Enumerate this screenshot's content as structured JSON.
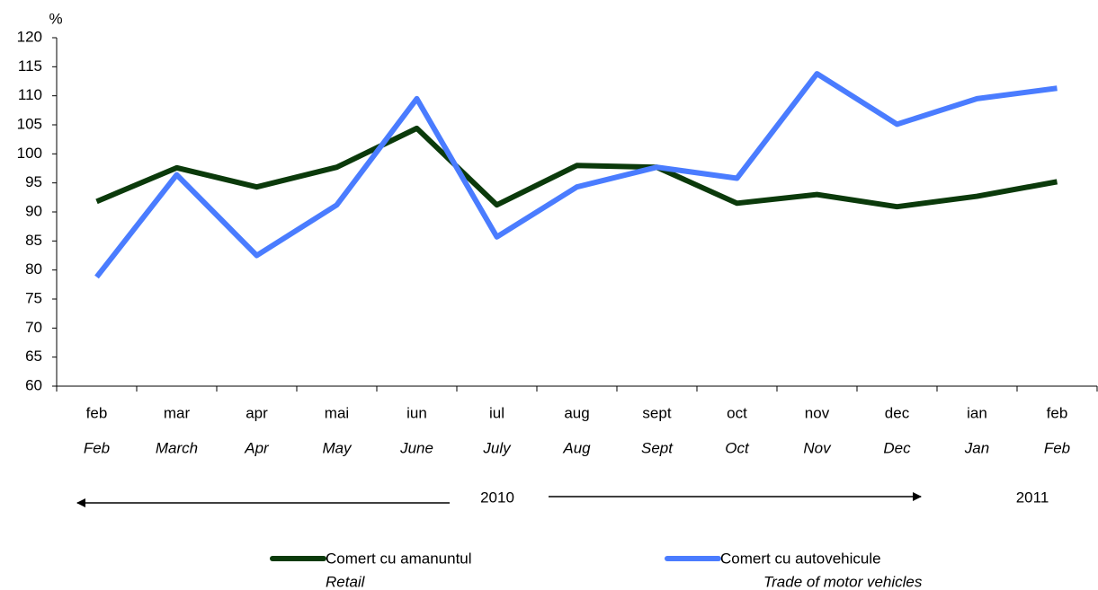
{
  "chart_data": {
    "type": "line",
    "y_axis_label": "%",
    "categories": [
      "feb",
      "mar",
      "apr",
      "mai",
      "iun",
      "iul",
      "aug",
      "sept",
      "oct",
      "nov",
      "dec",
      "ian",
      "feb"
    ],
    "categories_en": [
      "Feb",
      "March",
      "Apr",
      "May",
      "June",
      "July",
      "Aug",
      "Sept",
      "Oct",
      "Nov",
      "Dec",
      "Jan",
      "Feb"
    ],
    "annotations": [
      "2010",
      "2011"
    ],
    "series": [
      {
        "name": "Comert cu amanuntul",
        "name_en": "Retail",
        "color": "#0b3a0b",
        "values": [
          91.8,
          97.6,
          94.3,
          97.7,
          104.4,
          91.2,
          98.0,
          97.7,
          91.5,
          93.0,
          90.9,
          92.7,
          95.2
        ]
      },
      {
        "name": "Comert cu autovehicule",
        "name_en": "Trade of motor vehicles",
        "color": "#4a7cff",
        "values": [
          78.8,
          96.4,
          82.5,
          91.2,
          109.5,
          85.7,
          94.3,
          97.7,
          95.8,
          113.8,
          105.1,
          109.5,
          111.3
        ]
      }
    ],
    "ylim": [
      60,
      120
    ],
    "yticks": [
      60,
      65,
      70,
      75,
      80,
      85,
      90,
      95,
      100,
      105,
      110,
      115,
      120
    ],
    "grid": false
  }
}
